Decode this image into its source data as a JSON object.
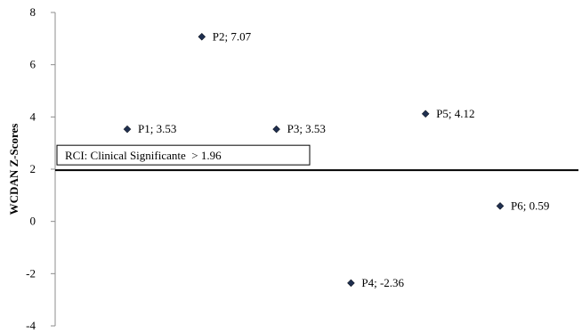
{
  "chart_data": {
    "type": "scatter",
    "ylabel": "WCDAN Z-Scores",
    "xlabel": "",
    "title": "",
    "ylim": [
      -4,
      8
    ],
    "yticks": [
      8,
      6,
      4,
      2,
      0,
      -2,
      -4
    ],
    "grid": false,
    "marker_color": "#1f2f4f",
    "points": [
      {
        "x": 1,
        "y": 3.53,
        "label": "P1; 3.53"
      },
      {
        "x": 2,
        "y": 7.07,
        "label": "P2; 7.07"
      },
      {
        "x": 3,
        "y": 3.53,
        "label": "P3; 3.53"
      },
      {
        "x": 4,
        "y": -2.36,
        "label": "P4; -2.36"
      },
      {
        "x": 5,
        "y": 4.12,
        "label": "P5; 4.12"
      },
      {
        "x": 6,
        "y": 0.59,
        "label": "P6; 0.59"
      }
    ],
    "threshold": {
      "y": 1.96,
      "label": "RCI: Clinical Significante  > 1.96"
    }
  }
}
